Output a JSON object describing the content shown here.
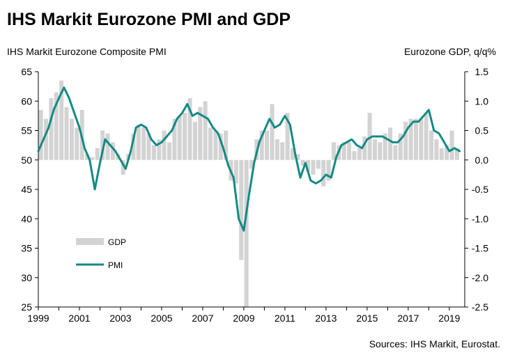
{
  "page": {
    "title": "IHS Markit Eurozone PMI and GDP",
    "left_axis_title": "IHS Markit Eurozone Composite PMI",
    "right_axis_title": "Eurozone GDP, q/q%",
    "source": "Sources: IHS Markit, Eurostat."
  },
  "colors": {
    "gdp_bar": "#d3d3d3",
    "pmi_line": "#128a85",
    "axis": "#000000"
  },
  "chart_data": {
    "type": "bar+line",
    "title": "IHS Markit Eurozone PMI and GDP",
    "x_range": [
      1999.0,
      2019.75
    ],
    "x_ticks": [
      1999,
      2001,
      2003,
      2005,
      2007,
      2009,
      2011,
      2013,
      2015,
      2017,
      2019
    ],
    "left_axis": {
      "label": "IHS Markit Eurozone Composite PMI",
      "min": 25,
      "max": 65,
      "ticks": [
        25,
        30,
        35,
        40,
        45,
        50,
        55,
        60,
        65
      ]
    },
    "right_axis": {
      "label": "Eurozone GDP, q/q%",
      "min": -2.5,
      "max": 1.5,
      "ticks": [
        "-2.5",
        "-2.0",
        "-1.5",
        "-1.0",
        "-0.5",
        "0.0",
        "0.5",
        "1.0",
        "1.5"
      ]
    },
    "legend": [
      "GDP",
      "PMI"
    ],
    "series": [
      {
        "name": "GDP",
        "axis": "right",
        "type": "bar",
        "x": [
          1999.0,
          1999.25,
          1999.5,
          1999.75,
          2000.0,
          2000.25,
          2000.5,
          2000.75,
          2001.0,
          2001.25,
          2001.5,
          2001.75,
          2002.0,
          2002.25,
          2002.5,
          2002.75,
          2003.0,
          2003.25,
          2003.5,
          2003.75,
          2004.0,
          2004.25,
          2004.5,
          2004.75,
          2005.0,
          2005.25,
          2005.5,
          2005.75,
          2006.0,
          2006.25,
          2006.5,
          2006.75,
          2007.0,
          2007.25,
          2007.5,
          2007.75,
          2008.0,
          2008.25,
          2008.5,
          2008.75,
          2009.0,
          2009.25,
          2009.5,
          2009.75,
          2010.0,
          2010.25,
          2010.5,
          2010.75,
          2011.0,
          2011.25,
          2011.5,
          2011.75,
          2012.0,
          2012.25,
          2012.5,
          2012.75,
          2013.0,
          2013.25,
          2013.5,
          2013.75,
          2014.0,
          2014.25,
          2014.5,
          2014.75,
          2015.0,
          2015.25,
          2015.5,
          2015.75,
          2016.0,
          2016.25,
          2016.5,
          2016.75,
          2017.0,
          2017.25,
          2017.5,
          2017.75,
          2018.0,
          2018.25,
          2018.5,
          2018.75,
          2019.0,
          2019.25
        ],
        "values": [
          0.85,
          0.7,
          1.05,
          1.15,
          1.35,
          0.9,
          0.7,
          0.55,
          0.85,
          0.1,
          0.05,
          0.2,
          0.5,
          0.45,
          0.3,
          0.1,
          -0.25,
          0.1,
          0.45,
          0.6,
          0.55,
          0.45,
          0.25,
          0.35,
          0.5,
          0.3,
          0.7,
          0.75,
          0.8,
          1.05,
          0.65,
          0.9,
          1.0,
          0.55,
          0.5,
          0.45,
          0.5,
          -0.35,
          -0.4,
          -1.7,
          -2.5,
          -0.15,
          0.35,
          0.5,
          0.5,
          0.95,
          0.35,
          0.3,
          0.8,
          0.2,
          0.1,
          -0.1,
          -0.2,
          -0.25,
          -0.15,
          -0.45,
          -0.35,
          0.3,
          0.25,
          0.3,
          0.3,
          0.15,
          0.2,
          0.4,
          0.8,
          0.35,
          0.3,
          0.45,
          0.55,
          0.25,
          0.45,
          0.65,
          0.7,
          0.7,
          0.7,
          0.8,
          0.5,
          0.35,
          0.2,
          0.25,
          0.5,
          0.2
        ]
      },
      {
        "name": "PMI",
        "axis": "left",
        "type": "line",
        "x": [
          1999.0,
          1999.25,
          1999.5,
          1999.75,
          2000.0,
          2000.25,
          2000.5,
          2000.75,
          2001.0,
          2001.25,
          2001.5,
          2001.75,
          2002.0,
          2002.25,
          2002.5,
          2002.75,
          2003.0,
          2003.25,
          2003.5,
          2003.75,
          2004.0,
          2004.25,
          2004.5,
          2004.75,
          2005.0,
          2005.25,
          2005.5,
          2005.75,
          2006.0,
          2006.25,
          2006.5,
          2006.75,
          2007.0,
          2007.25,
          2007.5,
          2007.75,
          2008.0,
          2008.25,
          2008.5,
          2008.75,
          2009.0,
          2009.25,
          2009.5,
          2009.75,
          2010.0,
          2010.25,
          2010.5,
          2010.75,
          2011.0,
          2011.25,
          2011.5,
          2011.75,
          2012.0,
          2012.25,
          2012.5,
          2012.75,
          2013.0,
          2013.25,
          2013.5,
          2013.75,
          2014.0,
          2014.25,
          2014.5,
          2014.75,
          2015.0,
          2015.25,
          2015.5,
          2015.75,
          2016.0,
          2016.25,
          2016.5,
          2016.75,
          2017.0,
          2017.25,
          2017.5,
          2017.75,
          2018.0,
          2018.25,
          2018.5,
          2018.75,
          2019.0,
          2019.25,
          2019.5
        ],
        "values": [
          51.5,
          53.5,
          55.5,
          58.5,
          60.5,
          62.3,
          60.5,
          58.0,
          55.5,
          52.0,
          50.0,
          45.0,
          49.5,
          53.5,
          52.5,
          51.5,
          50.0,
          48.5,
          51.5,
          55.5,
          56.0,
          55.5,
          53.5,
          52.5,
          53.0,
          54.0,
          55.0,
          57.0,
          58.0,
          59.5,
          57.5,
          58.0,
          57.5,
          57.0,
          55.5,
          54.5,
          52.0,
          49.0,
          47.0,
          40.0,
          38.0,
          44.0,
          49.5,
          53.0,
          55.0,
          57.0,
          55.5,
          56.0,
          57.5,
          56.0,
          51.0,
          47.0,
          49.5,
          46.5,
          46.0,
          46.5,
          47.5,
          47.0,
          50.5,
          52.5,
          53.0,
          53.5,
          52.5,
          52.0,
          53.5,
          54.0,
          54.0,
          54.0,
          53.5,
          53.0,
          53.0,
          54.0,
          55.5,
          56.5,
          56.5,
          57.5,
          58.5,
          55.0,
          54.5,
          53.0,
          51.5,
          52.0,
          51.5
        ]
      }
    ]
  }
}
